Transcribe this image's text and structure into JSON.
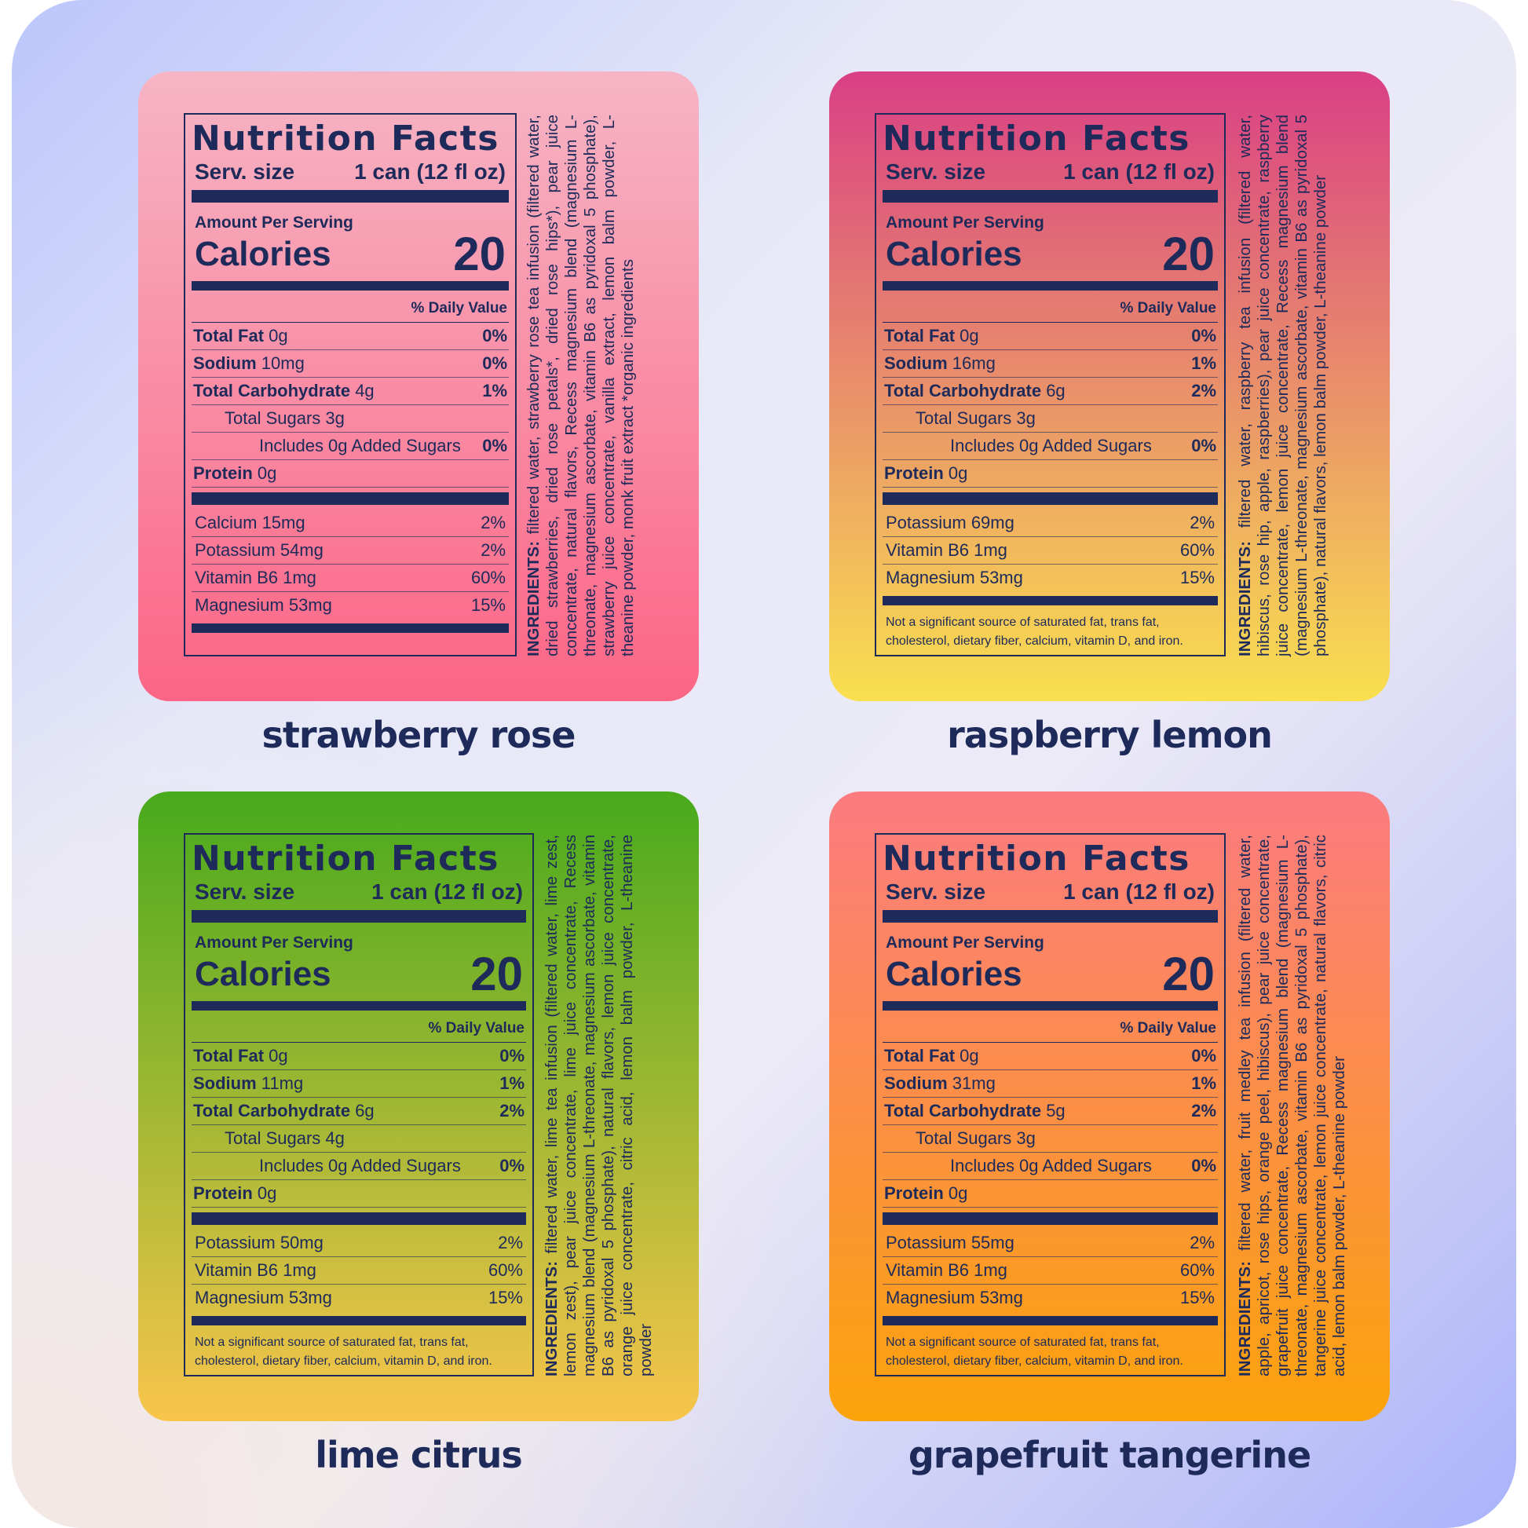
{
  "common": {
    "title": "Nutrition Facts",
    "serv_label": "Serv. size",
    "serv_value": "1 can (12 fl oz)",
    "amount_per_serving": "Amount Per Serving",
    "calories_label": "Calories",
    "daily_value_header": "% Daily Value",
    "ingredients_label": "INGREDIENTS:",
    "footnote": "Not a significant source of saturated fat, trans fat, cholesterol, dietary fiber, calcium, vitamin D, and iron."
  },
  "products": [
    {
      "name": "strawberry rose",
      "colors": [
        "#f6b5c5",
        "#fc6585"
      ],
      "calories": "20",
      "nutrients": [
        {
          "name": "Total Fat",
          "amount": "0g",
          "dv": "0%",
          "level": 0
        },
        {
          "name": "Sodium",
          "amount": "10mg",
          "dv": "0%",
          "level": 0
        },
        {
          "name": "Total Carbohydrate",
          "amount": "4g",
          "dv": "1%",
          "level": 0
        },
        {
          "name": "Total Sugars",
          "amount": "3g",
          "dv": "",
          "level": 1
        },
        {
          "name": "Includes 0g Added Sugars",
          "amount": "",
          "dv": "0%",
          "level": 2
        },
        {
          "name": "Protein",
          "amount": "0g",
          "dv": "",
          "level": 0
        }
      ],
      "minerals": [
        {
          "name": "Calcium 15mg",
          "dv": "2%"
        },
        {
          "name": "Potassium 54mg",
          "dv": "2%"
        },
        {
          "name": "Vitamin B6 1mg",
          "dv": "60%"
        },
        {
          "name": "Magnesium 53mg",
          "dv": "15%"
        }
      ],
      "footnote": false,
      "ingredients": "filtered water, strawberry rose tea infusion (filtered water, dried strawberries, dried rose petals*, dried rose hips*), pear juice concentrate, natural flavors, Recess magnesium blend (magnesium L-threonate, magnesium ascorbate, vitamin B6 as pyridoxal 5 phosphate), strawberry juice concentrate, vanilla extract, lemon balm powder, L-theanine powder, monk fruit extract *organic ingredients"
    },
    {
      "name": "raspberry lemon",
      "colors": [
        "#d93f85",
        "#f9e04f"
      ],
      "calories": "20",
      "nutrients": [
        {
          "name": "Total Fat",
          "amount": "0g",
          "dv": "0%",
          "level": 0
        },
        {
          "name": "Sodium",
          "amount": "16mg",
          "dv": "1%",
          "level": 0
        },
        {
          "name": "Total Carbohydrate",
          "amount": "6g",
          "dv": "2%",
          "level": 0
        },
        {
          "name": "Total Sugars",
          "amount": "3g",
          "dv": "",
          "level": 1
        },
        {
          "name": "Includes 0g Added Sugars",
          "amount": "",
          "dv": "0%",
          "level": 2
        },
        {
          "name": "Protein",
          "amount": "0g",
          "dv": "",
          "level": 0
        }
      ],
      "minerals": [
        {
          "name": "Potassium 69mg",
          "dv": "2%"
        },
        {
          "name": "Vitamin B6 1mg",
          "dv": "60%"
        },
        {
          "name": "Magnesium 53mg",
          "dv": "15%"
        }
      ],
      "footnote": true,
      "ingredients": "filtered water, raspberry tea infusion (filtered water, hibiscus, rose hip, apple, raspberries), pear juice concentrate, raspberry juice concentrate, lemon juice concentrate, Recess magnesium blend (magnesium L-threonate, magnesium ascorbate, vitamin B6 as pyridoxal 5 phosphate), natural flavors, lemon balm powder, L-theanine powder"
    },
    {
      "name": "lime citrus",
      "colors": [
        "#48aa1c",
        "#f8c54b"
      ],
      "calories": "20",
      "nutrients": [
        {
          "name": "Total Fat",
          "amount": "0g",
          "dv": "0%",
          "level": 0
        },
        {
          "name": "Sodium",
          "amount": "11mg",
          "dv": "1%",
          "level": 0
        },
        {
          "name": "Total Carbohydrate",
          "amount": "6g",
          "dv": "2%",
          "level": 0
        },
        {
          "name": "Total Sugars",
          "amount": "4g",
          "dv": "",
          "level": 1
        },
        {
          "name": "Includes 0g Added Sugars",
          "amount": "",
          "dv": "0%",
          "level": 2
        },
        {
          "name": "Protein",
          "amount": "0g",
          "dv": "",
          "level": 0
        }
      ],
      "minerals": [
        {
          "name": "Potassium 50mg",
          "dv": "2%"
        },
        {
          "name": "Vitamin B6 1mg",
          "dv": "60%"
        },
        {
          "name": "Magnesium 53mg",
          "dv": "15%"
        }
      ],
      "footnote": true,
      "ingredients": "filtered water, lime tea infusion (filtered water, lime zest, lemon zest), pear juice concentrate, lime juice concentrate, Recess magnesium blend (magnesium L-threonate, magnesium ascorbate, vitamin B6 as pyridoxal 5 phosphate), natural flavors, lemon juice concentrate, orange juice concentrate, citric acid, lemon balm powder, L-theanine powder"
    },
    {
      "name": "grapefruit tangerine",
      "colors": [
        "#fb7b80",
        "#fca30a"
      ],
      "calories": "20",
      "nutrients": [
        {
          "name": "Total Fat",
          "amount": "0g",
          "dv": "0%",
          "level": 0
        },
        {
          "name": "Sodium",
          "amount": "31mg",
          "dv": "1%",
          "level": 0
        },
        {
          "name": "Total Carbohydrate",
          "amount": "5g",
          "dv": "2%",
          "level": 0
        },
        {
          "name": "Total Sugars",
          "amount": "3g",
          "dv": "",
          "level": 1
        },
        {
          "name": "Includes 0g Added Sugars",
          "amount": "",
          "dv": "0%",
          "level": 2
        },
        {
          "name": "Protein",
          "amount": "0g",
          "dv": "",
          "level": 0
        }
      ],
      "minerals": [
        {
          "name": "Potassium 55mg",
          "dv": "2%"
        },
        {
          "name": "Vitamin B6 1mg",
          "dv": "60%"
        },
        {
          "name": "Magnesium 53mg",
          "dv": "15%"
        }
      ],
      "footnote": true,
      "ingredients": "filtered water, fruit medley tea infusion (filtered water, apple, apricot, rose hips, orange peel, hibiscus), pear juice concentrate, grapefruit juice concentrate, Recess magnesium blend (magnesium L-threonate, magnesium ascorbate, vitamin B6 as pyridoxal 5 phosphate), tangerine juice concentrate, lemon juice concentrate, natural flavors, citric acid, lemon balm powder, L-theanine powder"
    }
  ]
}
